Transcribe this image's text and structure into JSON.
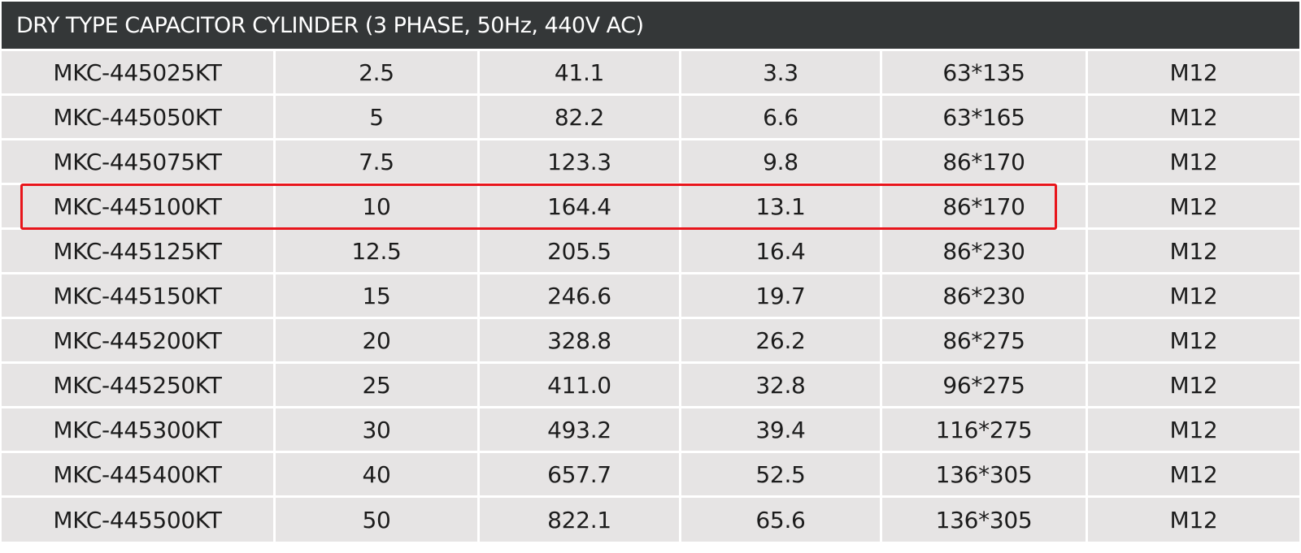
{
  "title": "DRY TYPE CAPACITOR CYLINDER (3 PHASE, 50Hz, 440V AC)",
  "highlight_color": "#e8151b",
  "highlighted_row": "MKC-445100KT",
  "rows": [
    [
      "MKC-445025KT",
      "2.5",
      "41.1",
      "3.3",
      "63*135",
      "M12"
    ],
    [
      "MKC-445050KT",
      "5",
      "82.2",
      "6.6",
      "63*165",
      "M12"
    ],
    [
      "MKC-445075KT",
      "7.5",
      "123.3",
      "9.8",
      "86*170",
      "M12"
    ],
    [
      "MKC-445100KT",
      "10",
      "164.4",
      "13.1",
      "86*170",
      "M12"
    ],
    [
      "MKC-445125KT",
      "12.5",
      "205.5",
      "16.4",
      "86*230",
      "M12"
    ],
    [
      "MKC-445150KT",
      "15",
      "246.6",
      "19.7",
      "86*230",
      "M12"
    ],
    [
      "MKC-445200KT",
      "20",
      "328.8",
      "26.2",
      "86*275",
      "M12"
    ],
    [
      "MKC-445250KT",
      "25",
      "411.0",
      "32.8",
      "96*275",
      "M12"
    ],
    [
      "MKC-445300KT",
      "30",
      "493.2",
      "39.4",
      "116*275",
      "M12"
    ],
    [
      "MKC-445400KT",
      "40",
      "657.7",
      "52.5",
      "136*305",
      "M12"
    ],
    [
      "MKC-445500KT",
      "50",
      "822.1",
      "65.6",
      "136*305",
      "M12"
    ]
  ]
}
